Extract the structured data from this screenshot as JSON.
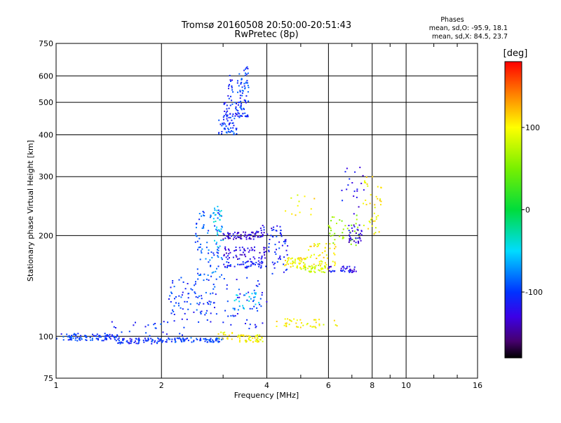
{
  "chart_data": {
    "type": "scatter",
    "title": "Tromsø 20160508 20:50:00-20:51:43",
    "subtitle": "RwPretec (8p)",
    "xlabel": "Frequency [MHz]",
    "ylabel": "Stationary phase Virtual Height [km]",
    "x_scale": "log",
    "y_scale": "log",
    "xlim": [
      1,
      16
    ],
    "ylim": [
      75,
      750
    ],
    "x_ticks": [
      1,
      2,
      4,
      6,
      8,
      10,
      16
    ],
    "x_tick_labels": [
      "1",
      "2",
      "4",
      "6",
      "8",
      "10",
      "16"
    ],
    "y_ticks": [
      75,
      100,
      200,
      300,
      400,
      500,
      600,
      750
    ],
    "y_tick_labels": [
      "75",
      "100",
      "200",
      "300",
      "400",
      "500",
      "600",
      "750"
    ],
    "grid": true,
    "phases_header": "Phases",
    "phases_line1": "mean, sd,O: -95.9, 18.1",
    "phases_line2": "mean, sd,X:  84.5, 23.7",
    "colorbar": {
      "label": "[deg]",
      "range": [
        -180,
        180
      ],
      "ticks": [
        100,
        0,
        -100
      ],
      "tick_labels": [
        "100",
        "0",
        "-100"
      ]
    },
    "series": [
      {
        "clusters": [
          {
            "f": [
              1.0,
              1.5
            ],
            "h": [
              97,
              102
            ],
            "phase": -100,
            "n": 90
          },
          {
            "f": [
              1.5,
              2.0
            ],
            "h": [
              95,
              99
            ],
            "phase": -105,
            "n": 70
          },
          {
            "f": [
              2.0,
              3.0
            ],
            "h": [
              96,
              99
            ],
            "phase": -98,
            "n": 80
          },
          {
            "f": [
              1.4,
              2.4
            ],
            "h": [
              100,
              112
            ],
            "phase": -100,
            "n": 25
          },
          {
            "f": [
              2.1,
              2.9
            ],
            "h": [
              110,
              150
            ],
            "phase": -100,
            "n": 90
          },
          {
            "f": [
              2.5,
              3.0
            ],
            "h": [
              150,
              240
            ],
            "phase": -90,
            "n": 85
          },
          {
            "f": [
              2.8,
              3.0
            ],
            "h": [
              185,
              245
            ],
            "phase": -50,
            "n": 30
          },
          {
            "f": [
              3.0,
              3.9
            ],
            "h": [
              195,
              205
            ],
            "phase": -130,
            "n": 70
          },
          {
            "f": [
              3.0,
              4.0
            ],
            "h": [
              170,
              185
            ],
            "phase": -125,
            "n": 60
          },
          {
            "f": [
              3.0,
              4.0
            ],
            "h": [
              160,
              168
            ],
            "phase": -110,
            "n": 50
          },
          {
            "f": [
              3.0,
              4.0
            ],
            "h": [
              105,
              150
            ],
            "phase": -105,
            "n": 50
          },
          {
            "f": [
              3.2,
              3.9
            ],
            "h": [
              120,
              135
            ],
            "phase": -60,
            "n": 25
          },
          {
            "f": [
              2.9,
              3.2
            ],
            "h": [
              98,
              103
            ],
            "phase": 100,
            "n": 15
          },
          {
            "f": [
              3.3,
              3.9
            ],
            "h": [
              96,
              101
            ],
            "phase": 100,
            "n": 50
          },
          {
            "f": [
              3.7,
              4.4
            ],
            "h": [
              200,
              215
            ],
            "phase": -120,
            "n": 25
          },
          {
            "f": [
              4.0,
              4.6
            ],
            "h": [
              150,
              200
            ],
            "phase": -105,
            "n": 40
          },
          {
            "f": [
              4.5,
              5.2
            ],
            "h": [
              160,
              172
            ],
            "phase": 100,
            "n": 50
          },
          {
            "f": [
              5.2,
              6.3
            ],
            "h": [
              160,
              190
            ],
            "phase": 105,
            "n": 50
          },
          {
            "f": [
              5.0,
              6.0
            ],
            "h": [
              155,
              163
            ],
            "phase": 80,
            "n": 40
          },
          {
            "f": [
              6.0,
              7.2
            ],
            "h": [
              155,
              162
            ],
            "phase": -120,
            "n": 40
          },
          {
            "f": [
              4.2,
              6.6
            ],
            "h": [
              106,
              113
            ],
            "phase": 100,
            "n": 40
          },
          {
            "f": [
              6.0,
              7.4
            ],
            "h": [
              185,
              230
            ],
            "phase": 60,
            "n": 40
          },
          {
            "f": [
              6.8,
              7.5
            ],
            "h": [
              190,
              215
            ],
            "phase": -130,
            "n": 35
          },
          {
            "f": [
              7.5,
              8.5
            ],
            "h": [
              200,
              300
            ],
            "phase": 100,
            "n": 40
          },
          {
            "f": [
              6.5,
              7.6
            ],
            "h": [
              230,
              320
            ],
            "phase": -120,
            "n": 20
          },
          {
            "f": [
              4.5,
              5.5
            ],
            "h": [
              225,
              265
            ],
            "phase": 100,
            "n": 12
          },
          {
            "f": [
              2.9,
              3.3
            ],
            "h": [
              400,
              450
            ],
            "phase": -100,
            "n": 45
          },
          {
            "f": [
              3.0,
              3.4
            ],
            "h": [
              450,
              500
            ],
            "phase": -105,
            "n": 40
          },
          {
            "f": [
              3.3,
              3.55
            ],
            "h": [
              450,
              650
            ],
            "phase": -100,
            "n": 70
          },
          {
            "f": [
              3.1,
              3.2
            ],
            "h": [
              500,
              615
            ],
            "phase": -110,
            "n": 15
          }
        ]
      }
    ]
  }
}
